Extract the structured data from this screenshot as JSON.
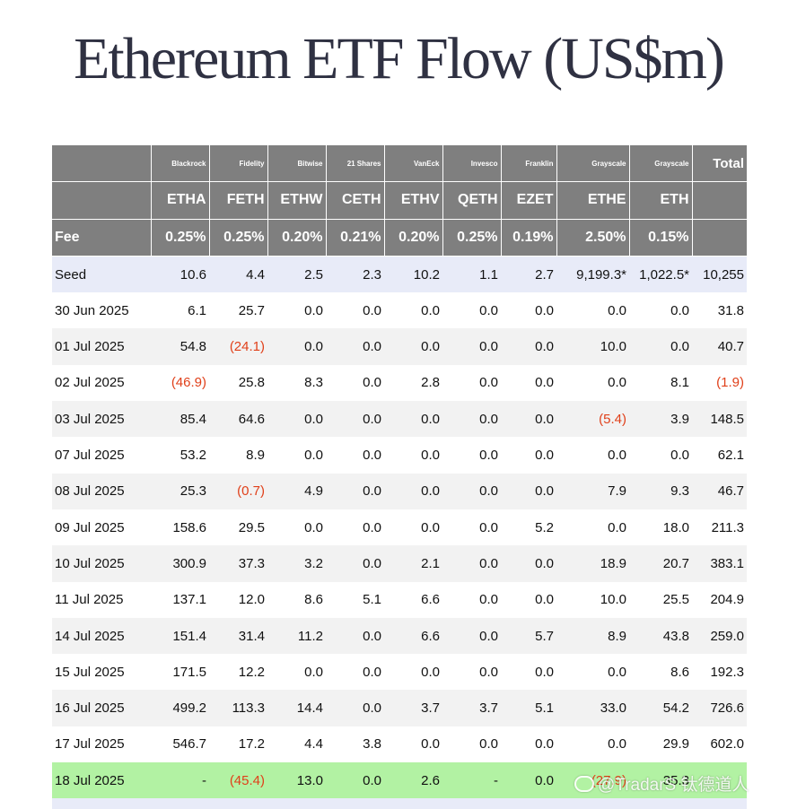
{
  "title": "Ethereum ETF Flow (US$m)",
  "header": {
    "issuers": [
      "",
      "Blackrock",
      "Fidelity",
      "Bitwise",
      "21 Shares",
      "VanEck",
      "Invesco",
      "Franklin",
      "Grayscale",
      "Grayscale",
      "Total"
    ],
    "tickers": [
      "",
      "ETHA",
      "FETH",
      "ETHW",
      "CETH",
      "ETHV",
      "QETH",
      "EZET",
      "ETHE",
      "ETH",
      ""
    ],
    "fees": [
      "Fee",
      "0.25%",
      "0.25%",
      "0.20%",
      "0.21%",
      "0.20%",
      "0.25%",
      "0.19%",
      "2.50%",
      "0.15%",
      ""
    ]
  },
  "rows": [
    [
      "Seed",
      "10.6",
      "4.4",
      "2.5",
      "2.3",
      "10.2",
      "1.1",
      "2.7",
      "9,199.3*",
      "1,022.5*",
      "10,255"
    ],
    [
      "30 Jun 2025",
      "6.1",
      "25.7",
      "0.0",
      "0.0",
      "0.0",
      "0.0",
      "0.0",
      "0.0",
      "0.0",
      "31.8"
    ],
    [
      "01 Jul 2025",
      "54.8",
      "(24.1)",
      "0.0",
      "0.0",
      "0.0",
      "0.0",
      "0.0",
      "10.0",
      "0.0",
      "40.7"
    ],
    [
      "02 Jul 2025",
      "(46.9)",
      "25.8",
      "8.3",
      "0.0",
      "2.8",
      "0.0",
      "0.0",
      "0.0",
      "8.1",
      "(1.9)"
    ],
    [
      "03 Jul 2025",
      "85.4",
      "64.6",
      "0.0",
      "0.0",
      "0.0",
      "0.0",
      "0.0",
      "(5.4)",
      "3.9",
      "148.5"
    ],
    [
      "07 Jul 2025",
      "53.2",
      "8.9",
      "0.0",
      "0.0",
      "0.0",
      "0.0",
      "0.0",
      "0.0",
      "0.0",
      "62.1"
    ],
    [
      "08 Jul 2025",
      "25.3",
      "(0.7)",
      "4.9",
      "0.0",
      "0.0",
      "0.0",
      "0.0",
      "7.9",
      "9.3",
      "46.7"
    ],
    [
      "09 Jul 2025",
      "158.6",
      "29.5",
      "0.0",
      "0.0",
      "0.0",
      "0.0",
      "5.2",
      "0.0",
      "18.0",
      "211.3"
    ],
    [
      "10 Jul 2025",
      "300.9",
      "37.3",
      "3.2",
      "0.0",
      "2.1",
      "0.0",
      "0.0",
      "18.9",
      "20.7",
      "383.1"
    ],
    [
      "11 Jul 2025",
      "137.1",
      "12.0",
      "8.6",
      "5.1",
      "6.6",
      "0.0",
      "0.0",
      "10.0",
      "25.5",
      "204.9"
    ],
    [
      "14 Jul 2025",
      "151.4",
      "31.4",
      "11.2",
      "0.0",
      "6.6",
      "0.0",
      "5.7",
      "8.9",
      "43.8",
      "259.0"
    ],
    [
      "15 Jul 2025",
      "171.5",
      "12.2",
      "0.0",
      "0.0",
      "0.0",
      "0.0",
      "0.0",
      "0.0",
      "8.6",
      "192.3"
    ],
    [
      "16 Jul 2025",
      "499.2",
      "113.3",
      "14.4",
      "0.0",
      "3.7",
      "3.7",
      "5.1",
      "33.0",
      "54.2",
      "726.6"
    ],
    [
      "17 Jul 2025",
      "546.7",
      "17.2",
      "4.4",
      "3.8",
      "0.0",
      "0.0",
      "0.0",
      "0.0",
      "29.9",
      "602.0"
    ],
    [
      "18 Jul 2025",
      "-",
      "(45.4)",
      "13.0",
      "0.0",
      "2.6",
      "-",
      "0.0",
      "(27.9)",
      "35.3",
      ""
    ]
  ],
  "watermark": "@TradarS 钛德道人",
  "colors": {
    "header_bg": "#7f7f7f",
    "seed_bg": "#e8ebf8",
    "alt_bg": "#f2f2f2",
    "latest_bg": "#b2f2a3",
    "negative": "#e0401a",
    "title": "#2f3142"
  }
}
